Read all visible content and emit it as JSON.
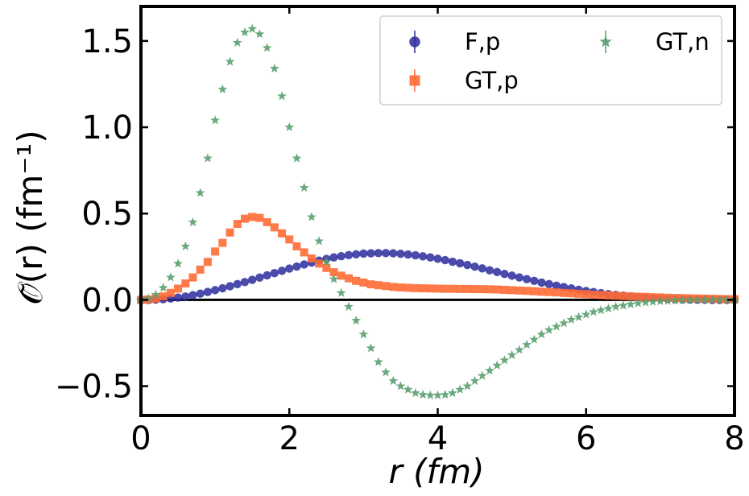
{
  "chart_data": {
    "type": "scatter",
    "xlabel": "r (fm)",
    "ylabel": "𝒪̃(r) (fm⁻¹)",
    "xlim": [
      0,
      8
    ],
    "ylim": [
      -0.67,
      1.7
    ],
    "x_ticks": [
      "0",
      "2",
      "4",
      "6",
      "8"
    ],
    "y_ticks": [
      "−0.5",
      "0.0",
      "0.5",
      "1.0",
      "1.5"
    ],
    "x_tick_values": [
      0,
      2,
      4,
      6,
      8
    ],
    "y_tick_values": [
      -0.5,
      0.0,
      0.5,
      1.0,
      1.5
    ],
    "grid": false,
    "legend_position": "top-right",
    "zero_line": true,
    "series": [
      {
        "name": "F,p",
        "marker": "circle",
        "color": "#2b2b9e",
        "x": [
          0.0,
          0.1,
          0.2,
          0.3,
          0.4,
          0.5,
          0.6,
          0.7,
          0.8,
          0.9,
          1.0,
          1.1,
          1.2,
          1.3,
          1.4,
          1.5,
          1.6,
          1.7,
          1.8,
          1.9,
          2.0,
          2.1,
          2.2,
          2.3,
          2.4,
          2.5,
          2.6,
          2.7,
          2.8,
          2.9,
          3.0,
          3.1,
          3.2,
          3.3,
          3.4,
          3.5,
          3.6,
          3.7,
          3.8,
          3.9,
          4.0,
          4.1,
          4.2,
          4.3,
          4.4,
          4.5,
          4.6,
          4.7,
          4.8,
          4.9,
          5.0,
          5.1,
          5.2,
          5.3,
          5.4,
          5.5,
          5.6,
          5.7,
          5.8,
          5.9,
          6.0,
          6.1,
          6.2,
          6.3,
          6.4,
          6.5,
          6.6,
          6.7,
          6.8,
          6.9,
          7.0,
          7.1,
          7.2,
          7.3,
          7.4,
          7.5,
          7.6,
          7.7,
          7.8,
          7.9,
          8.0
        ],
        "y": [
          0.0,
          0.0,
          0.002,
          0.004,
          0.008,
          0.013,
          0.019,
          0.027,
          0.036,
          0.046,
          0.056,
          0.067,
          0.079,
          0.091,
          0.103,
          0.116,
          0.129,
          0.142,
          0.155,
          0.168,
          0.181,
          0.193,
          0.205,
          0.216,
          0.227,
          0.237,
          0.246,
          0.253,
          0.259,
          0.264,
          0.268,
          0.27,
          0.271,
          0.271,
          0.27,
          0.267,
          0.263,
          0.258,
          0.252,
          0.246,
          0.238,
          0.23,
          0.221,
          0.212,
          0.202,
          0.192,
          0.182,
          0.171,
          0.161,
          0.15,
          0.14,
          0.13,
          0.12,
          0.11,
          0.1,
          0.091,
          0.082,
          0.074,
          0.066,
          0.058,
          0.051,
          0.045,
          0.039,
          0.033,
          0.028,
          0.024,
          0.02,
          0.016,
          0.013,
          0.01,
          0.008,
          0.006,
          0.004,
          0.003,
          0.002,
          0.001,
          0.001,
          0.0,
          0.0,
          0.0,
          0.0
        ]
      },
      {
        "name": "GT,p",
        "marker": "square",
        "color": "#ff6b35",
        "x": [
          0.0,
          0.1,
          0.2,
          0.3,
          0.4,
          0.5,
          0.6,
          0.7,
          0.8,
          0.9,
          1.0,
          1.1,
          1.2,
          1.3,
          1.4,
          1.5,
          1.6,
          1.7,
          1.8,
          1.9,
          2.0,
          2.1,
          2.2,
          2.3,
          2.4,
          2.5,
          2.6,
          2.7,
          2.8,
          2.9,
          3.0,
          3.1,
          3.2,
          3.3,
          3.4,
          3.5,
          3.6,
          3.7,
          3.8,
          3.9,
          4.0,
          4.1,
          4.2,
          4.3,
          4.4,
          4.5,
          4.6,
          4.7,
          4.8,
          4.9,
          5.0,
          5.1,
          5.2,
          5.3,
          5.4,
          5.5,
          5.6,
          5.7,
          5.8,
          5.9,
          6.0,
          6.1,
          6.2,
          6.3,
          6.4,
          6.5,
          6.6,
          6.7,
          6.8,
          6.9,
          7.0,
          7.1,
          7.2,
          7.3,
          7.4,
          7.5,
          7.6,
          7.7,
          7.8,
          7.9,
          8.0
        ],
        "y": [
          0.0,
          0.002,
          0.008,
          0.02,
          0.04,
          0.065,
          0.095,
          0.13,
          0.175,
          0.22,
          0.28,
          0.33,
          0.39,
          0.44,
          0.47,
          0.48,
          0.475,
          0.45,
          0.42,
          0.385,
          0.35,
          0.31,
          0.275,
          0.24,
          0.21,
          0.185,
          0.16,
          0.14,
          0.125,
          0.11,
          0.1,
          0.09,
          0.085,
          0.08,
          0.075,
          0.072,
          0.07,
          0.068,
          0.067,
          0.066,
          0.065,
          0.064,
          0.064,
          0.063,
          0.063,
          0.062,
          0.062,
          0.061,
          0.06,
          0.058,
          0.056,
          0.054,
          0.052,
          0.05,
          0.047,
          0.045,
          0.043,
          0.04,
          0.038,
          0.035,
          0.033,
          0.03,
          0.028,
          0.026,
          0.024,
          0.022,
          0.02,
          0.018,
          0.017,
          0.015,
          0.014,
          0.012,
          0.011,
          0.01,
          0.009,
          0.008,
          0.007,
          0.006,
          0.005,
          0.004,
          0.004
        ]
      },
      {
        "name": "GT,n",
        "marker": "star",
        "color": "#5aa070",
        "x": [
          0.0,
          0.1,
          0.2,
          0.3,
          0.4,
          0.5,
          0.6,
          0.7,
          0.8,
          0.9,
          1.0,
          1.1,
          1.2,
          1.3,
          1.4,
          1.5,
          1.6,
          1.7,
          1.8,
          1.9,
          2.0,
          2.1,
          2.2,
          2.3,
          2.4,
          2.5,
          2.6,
          2.7,
          2.8,
          2.9,
          3.0,
          3.1,
          3.2,
          3.3,
          3.4,
          3.5,
          3.6,
          3.7,
          3.8,
          3.9,
          4.0,
          4.1,
          4.2,
          4.3,
          4.4,
          4.5,
          4.6,
          4.7,
          4.8,
          4.9,
          5.0,
          5.1,
          5.2,
          5.3,
          5.4,
          5.5,
          5.6,
          5.7,
          5.8,
          5.9,
          6.0,
          6.1,
          6.2,
          6.3,
          6.4,
          6.5,
          6.6,
          6.7,
          6.8,
          6.9,
          7.0,
          7.1,
          7.2,
          7.3,
          7.4,
          7.5,
          7.6,
          7.7,
          7.8,
          7.9,
          8.0
        ],
        "y": [
          0.0,
          0.008,
          0.03,
          0.07,
          0.13,
          0.21,
          0.31,
          0.45,
          0.62,
          0.82,
          1.04,
          1.22,
          1.38,
          1.49,
          1.55,
          1.57,
          1.54,
          1.46,
          1.34,
          1.18,
          1.0,
          0.82,
          0.65,
          0.48,
          0.34,
          0.22,
          0.12,
          0.04,
          -0.04,
          -0.12,
          -0.2,
          -0.28,
          -0.36,
          -0.42,
          -0.47,
          -0.5,
          -0.52,
          -0.54,
          -0.55,
          -0.553,
          -0.553,
          -0.55,
          -0.54,
          -0.52,
          -0.5,
          -0.47,
          -0.44,
          -0.41,
          -0.38,
          -0.35,
          -0.32,
          -0.29,
          -0.26,
          -0.23,
          -0.2,
          -0.175,
          -0.155,
          -0.135,
          -0.115,
          -0.1,
          -0.085,
          -0.07,
          -0.06,
          -0.05,
          -0.04,
          -0.033,
          -0.026,
          -0.02,
          -0.015,
          -0.011,
          -0.008,
          -0.006,
          -0.004,
          -0.003,
          -0.002,
          -0.001,
          0.0,
          0.0,
          0.0,
          0.0,
          0.0
        ]
      }
    ]
  }
}
